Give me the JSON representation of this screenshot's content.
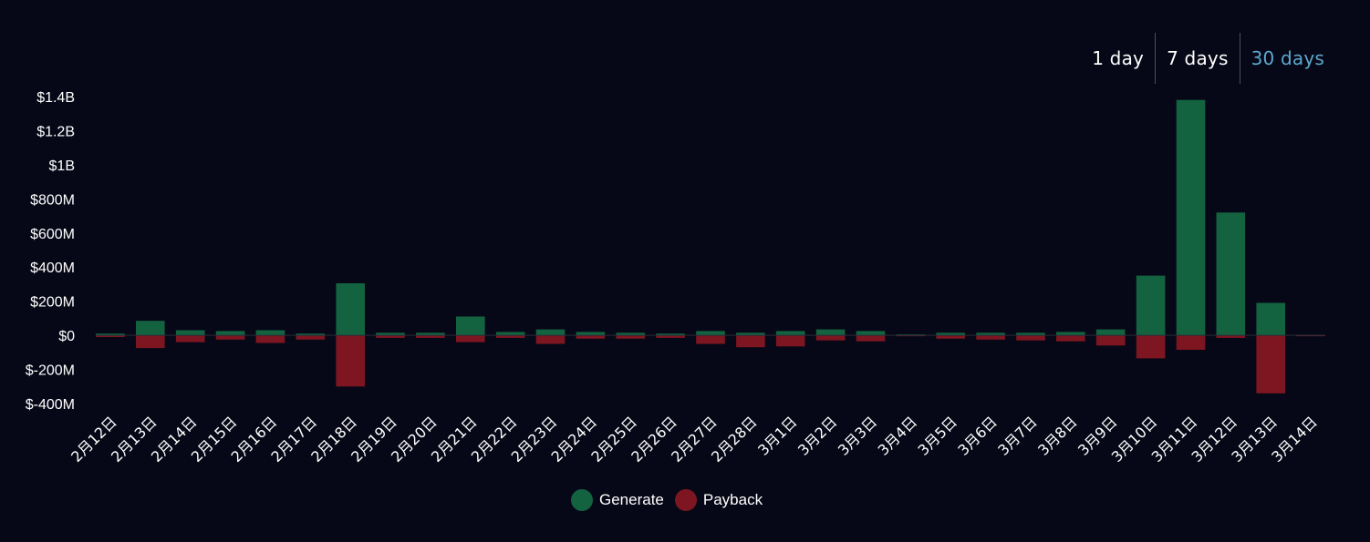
{
  "range_tabs": [
    {
      "label": "1 day",
      "active": false
    },
    {
      "label": "7 days",
      "active": false
    },
    {
      "label": "30 days",
      "active": true
    }
  ],
  "colors": {
    "background": "#070817",
    "generate": "#136240",
    "payback": "#7d1621",
    "active_tab": "#5da8cf"
  },
  "legend": [
    {
      "label": "Generate",
      "color": "#136240"
    },
    {
      "label": "Payback",
      "color": "#7d1621"
    }
  ],
  "chart_data": {
    "type": "bar",
    "stacked": true,
    "title": "",
    "xlabel": "",
    "ylabel": "",
    "ylim": [
      -400,
      1400
    ],
    "ytick_values": [
      1400,
      1200,
      1000,
      800,
      600,
      400,
      200,
      0,
      -200,
      -400
    ],
    "ytick_labels": [
      "$1.4B",
      "$1.2B",
      "$1B",
      "$800M",
      "$600M",
      "$400M",
      "$200M",
      "$0",
      "$-200M",
      "$-400M"
    ],
    "grid": false,
    "legend_position": "bottom",
    "value_unit": "$M",
    "categories": [
      "2月12日",
      "2月13日",
      "2月14日",
      "2月15日",
      "2月16日",
      "2月17日",
      "2月18日",
      "2月19日",
      "2月20日",
      "2月21日",
      "2月22日",
      "2月23日",
      "2月24日",
      "2月25日",
      "2月26日",
      "2月27日",
      "2月28日",
      "3月1日",
      "3月2日",
      "3月3日",
      "3月4日",
      "3月5日",
      "3月6日",
      "3月7日",
      "3月8日",
      "3月9日",
      "3月10日",
      "3月11日",
      "3月12日",
      "3月13日",
      "3月14日"
    ],
    "series": [
      {
        "name": "Generate",
        "color": "#136240",
        "values": [
          10,
          85,
          30,
          25,
          30,
          10,
          305,
          15,
          15,
          110,
          20,
          35,
          20,
          15,
          10,
          25,
          15,
          25,
          35,
          25,
          5,
          15,
          15,
          15,
          20,
          35,
          350,
          1380,
          720,
          190,
          2
        ]
      },
      {
        "name": "Payback",
        "color": "#7d1621",
        "values": [
          -10,
          -75,
          -40,
          -25,
          -45,
          -25,
          -300,
          -15,
          -15,
          -40,
          -15,
          -50,
          -20,
          -20,
          -15,
          -50,
          -70,
          -65,
          -30,
          -35,
          -5,
          -20,
          -25,
          -30,
          -35,
          -60,
          -135,
          -85,
          -15,
          -340,
          -5
        ]
      }
    ]
  }
}
